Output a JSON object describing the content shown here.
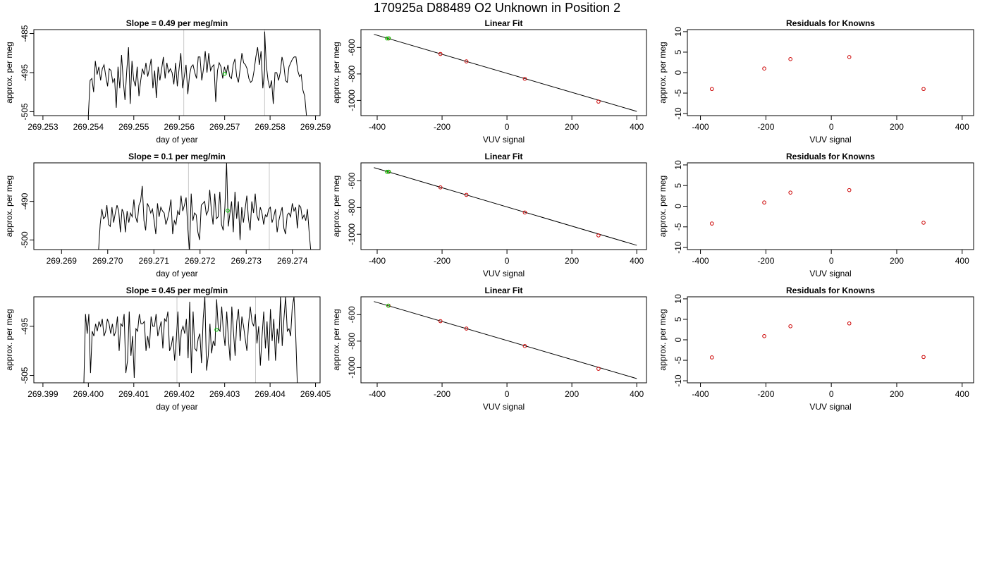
{
  "suptitle": "170925a     D88489   O2 Unknown in Position  2",
  "colors": {
    "line": "#000000",
    "known": "#cc0000",
    "unknown": "#00cc00",
    "vline": "#c8c8c8"
  },
  "rows": [
    {
      "timeseries": {
        "title": "Slope =  0.49  per meg/min",
        "xlabel": "day of year",
        "ylabel": "approx. per meg",
        "x_ticks": [
          "269.253",
          "269.254",
          "269.255",
          "269.256",
          "269.257",
          "269.258",
          "269.259"
        ],
        "y_ticks": [
          "-485",
          "-495",
          "-505"
        ]
      },
      "linear": {
        "title": "Linear Fit",
        "xlabel": "VUV signal",
        "ylabel": "approx. per meg",
        "x_ticks": [
          "-400",
          "-200",
          "0",
          "200",
          "400"
        ],
        "y_ticks": [
          "-600",
          "-800",
          "-1000"
        ]
      },
      "residuals": {
        "title": "Residuals for Knowns",
        "xlabel": "VUV signal",
        "ylabel": "approx. per meg",
        "x_ticks": [
          "-400",
          "-200",
          "0",
          "200",
          "400"
        ],
        "y_ticks": [
          "10",
          "5",
          "0",
          "-5",
          "-10"
        ]
      }
    },
    {
      "timeseries": {
        "title": "Slope =  0.1  per meg/min",
        "xlabel": "day of year",
        "ylabel": "approx. per meg",
        "x_ticks": [
          "269.269",
          "269.270",
          "269.271",
          "269.272",
          "269.273",
          "269.274"
        ],
        "y_ticks": [
          "-490",
          "-500"
        ]
      },
      "linear": {
        "title": "Linear Fit",
        "xlabel": "VUV signal",
        "ylabel": "approx. per meg",
        "x_ticks": [
          "-400",
          "-200",
          "0",
          "200",
          "400"
        ],
        "y_ticks": [
          "-600",
          "-800",
          "-1000"
        ]
      },
      "residuals": {
        "title": "Residuals for Knowns",
        "xlabel": "VUV signal",
        "ylabel": "approx. per meg",
        "x_ticks": [
          "-400",
          "-200",
          "0",
          "200",
          "400"
        ],
        "y_ticks": [
          "10",
          "5",
          "0",
          "-5",
          "-10"
        ]
      }
    },
    {
      "timeseries": {
        "title": "Slope =  0.45  per meg/min",
        "xlabel": "day of year",
        "ylabel": "approx. per meg",
        "x_ticks": [
          "269.399",
          "269.400",
          "269.401",
          "269.402",
          "269.403",
          "269.404",
          "269.405"
        ],
        "y_ticks": [
          "-495",
          "-505"
        ]
      },
      "linear": {
        "title": "Linear Fit",
        "xlabel": "VUV signal",
        "ylabel": "approx. per meg",
        "x_ticks": [
          "-400",
          "-200",
          "0",
          "200",
          "400"
        ],
        "y_ticks": [
          "-600",
          "-800",
          "-1000"
        ]
      },
      "residuals": {
        "title": "Residuals for Knowns",
        "xlabel": "VUV signal",
        "ylabel": "approx. per meg",
        "x_ticks": [
          "-400",
          "-200",
          "0",
          "200",
          "400"
        ],
        "y_ticks": [
          "10",
          "5",
          "0",
          "-5",
          "-10"
        ]
      }
    }
  ],
  "chart_data": [
    {
      "type": "line",
      "panel": "timeseries-1",
      "title": "Slope =  0.49  per meg/min",
      "xlabel": "day of year",
      "ylabel": "approx. per meg",
      "xlim": [
        269.2528,
        269.2591
      ],
      "ylim": [
        -506,
        -484
      ],
      "x_start": 269.254,
      "x_end": 269.2588,
      "y": [
        -506,
        -497,
        -496.5,
        -500,
        -492,
        -495.5,
        -493.5,
        -497,
        -494,
        -493,
        -496,
        -498.5,
        -494,
        -494.5,
        -497.5,
        -496.5,
        -504,
        -493.5,
        -499,
        -490.5,
        -497,
        -502,
        -494.5,
        -488.5,
        -503,
        -492,
        -497,
        -498.5,
        -493.5,
        -501,
        -497,
        -494,
        -495.5,
        -492.5,
        -496,
        -494,
        -491.5,
        -499,
        -494.5,
        -501.5,
        -493.5,
        -497,
        -494,
        -491,
        -496.5,
        -492.5,
        -495,
        -494,
        -495,
        -498,
        -492.5,
        -498.5,
        -494,
        -490,
        -499,
        -496,
        -493,
        -500.5,
        -495.5,
        -493.5,
        -493,
        -495,
        -496.5,
        -491,
        -491,
        -497,
        -494,
        -489.5,
        -495,
        -490,
        -494.5,
        -493.5,
        -493,
        -502.5,
        -494.5,
        -492.5,
        -493.5,
        -496.5,
        -493.5,
        -495.5,
        -493,
        -496,
        -496.5,
        -493,
        -491.5,
        -496,
        -497.5,
        -494,
        -490,
        -492.5,
        -493,
        -494,
        -496.5,
        -497.5,
        -497,
        -494.5,
        -491,
        -488.5,
        -493,
        -489.5,
        -499,
        -494.5,
        -493,
        -497,
        -499,
        -497,
        -503,
        -495,
        -495,
        -497,
        -495,
        -491,
        -493,
        -497,
        -497.5,
        -493.5,
        -492.5,
        -491.5,
        -491,
        -491,
        -494.5,
        -496,
        -495.5,
        -499.5,
        -501,
        -506
      ],
      "spike": {
        "x": 269.25788,
        "y": -484.5
      },
      "vlines": [
        269.2561,
        269.25788
      ],
      "unknown_point": {
        "x": 269.257,
        "y": -495.3
      }
    },
    {
      "type": "scatter",
      "panel": "linear-1",
      "title": "Linear Fit",
      "xlabel": "VUV signal",
      "ylabel": "approx. per meg",
      "xlim": [
        -450,
        430
      ],
      "ylim": [
        -1115,
        -465
      ],
      "fit_line": {
        "x": [
          -410,
          400
        ],
        "y": [
          -500.6,
          -1083
        ]
      },
      "knowns": [
        {
          "x": -365,
          "y": -532
        },
        {
          "x": -205,
          "y": -649
        },
        {
          "x": -125,
          "y": -705
        },
        {
          "x": 55,
          "y": -837
        },
        {
          "x": 282,
          "y": -1009
        }
      ],
      "unknowns": [
        {
          "x": -370,
          "y": -532
        },
        {
          "x": -364,
          "y": -531
        }
      ]
    },
    {
      "type": "scatter",
      "panel": "residuals-1",
      "title": "Residuals for Knowns",
      "xlabel": "VUV signal",
      "ylabel": "approx. per meg",
      "xlim": [
        -440,
        435
      ],
      "ylim": [
        -10.5,
        10.5
      ],
      "points": [
        {
          "x": -365,
          "y": -4
        },
        {
          "x": -205,
          "y": 1
        },
        {
          "x": -125,
          "y": 3.3
        },
        {
          "x": 55,
          "y": 3.8
        },
        {
          "x": 282,
          "y": -4
        }
      ]
    },
    {
      "type": "line",
      "panel": "timeseries-2",
      "title": "Slope =  0.1  per meg/min",
      "xlabel": "day of year",
      "ylabel": "approx. per meg",
      "xlim": [
        269.2684,
        269.2746
      ],
      "ylim": [
        -502.5,
        -480
      ],
      "x_start": 269.2698,
      "x_end": 269.2744,
      "y": [
        -503,
        -496,
        -492,
        -494.5,
        -494,
        -491,
        -496,
        -496.5,
        -491.5,
        -495.5,
        -493,
        -491,
        -492.5,
        -498,
        -492,
        -493,
        -498,
        -492.5,
        -495.5,
        -493,
        -494,
        -489.5,
        -494,
        -495.5,
        -491,
        -490,
        -486,
        -495,
        -497.5,
        -490.5,
        -491.5,
        -493,
        -492,
        -495,
        -498.5,
        -490.5,
        -494,
        -491.5,
        -492.5,
        -493,
        -496,
        -494.5,
        -492.5,
        -489.5,
        -498.5,
        -495,
        -496,
        -492.5,
        -493.5,
        -488.5,
        -492.5,
        -491,
        -489,
        -497,
        -503,
        -488,
        -495,
        -493,
        -493.5,
        -498,
        -500,
        -491,
        -490.5,
        -490,
        -493.5,
        -492.5,
        -487,
        -492.5,
        -496,
        -488,
        -494.5,
        -494,
        -487.5,
        -496,
        -497.5,
        -491.5,
        -480,
        -496.5,
        -493,
        -490,
        -498,
        -487.5,
        -494.5,
        -490,
        -500,
        -491.5,
        -495.5,
        -492,
        -488.5,
        -494.5,
        -497.5,
        -490,
        -493,
        -488,
        -493.5,
        -495,
        -491.5,
        -493,
        -496,
        -493.5,
        -494,
        -492,
        -491.5,
        -495.5,
        -494,
        -492,
        -498,
        -495,
        -493,
        -491.5,
        -497,
        -498.5,
        -493.5,
        -493,
        -494,
        -490.5,
        -492.5,
        -491.5,
        -497,
        -491,
        -491.5,
        -494.5,
        -493.5,
        -495,
        -492,
        -498,
        -503
      ],
      "vlines": [
        269.27175,
        269.2735
      ],
      "unknown_point": {
        "x": 269.2726,
        "y": -492.4
      }
    },
    {
      "type": "scatter",
      "panel": "linear-2",
      "title": "Linear Fit",
      "xlabel": "VUV signal",
      "ylabel": "approx. per meg",
      "xlim": [
        -450,
        430
      ],
      "ylim": [
        -1115,
        -465
      ],
      "fit_line": {
        "x": [
          -410,
          400
        ],
        "y": [
          -500.6,
          -1083
        ]
      },
      "knowns": [
        {
          "x": -365,
          "y": -532
        },
        {
          "x": -205,
          "y": -649
        },
        {
          "x": -125,
          "y": -705
        },
        {
          "x": 55,
          "y": -837
        },
        {
          "x": 282,
          "y": -1009
        }
      ],
      "unknowns": [
        {
          "x": -370,
          "y": -532
        },
        {
          "x": -364,
          "y": -531
        }
      ]
    },
    {
      "type": "scatter",
      "panel": "residuals-2",
      "title": "Residuals for Knowns",
      "xlabel": "VUV signal",
      "ylabel": "approx. per meg",
      "xlim": [
        -440,
        435
      ],
      "ylim": [
        -10.5,
        10.5
      ],
      "points": [
        {
          "x": -365,
          "y": -4.2
        },
        {
          "x": -205,
          "y": 0.9
        },
        {
          "x": -125,
          "y": 3.3
        },
        {
          "x": 55,
          "y": 3.9
        },
        {
          "x": 282,
          "y": -4
        }
      ]
    },
    {
      "type": "line",
      "panel": "timeseries-3",
      "title": "Slope =  0.45  per meg/min",
      "xlabel": "day of year",
      "ylabel": "approx. per meg",
      "xlim": [
        269.3988,
        269.4051
      ],
      "ylim": [
        -506.5,
        -489
      ],
      "x_start": 269.3999,
      "x_end": 269.4046,
      "y": [
        -507,
        -492.5,
        -496.5,
        -492.5,
        -504.5,
        -496,
        -497,
        -494.5,
        -496,
        -494,
        -495,
        -493.5,
        -497,
        -496,
        -493.5,
        -494.5,
        -496.5,
        -494.5,
        -497,
        -496,
        -493,
        -500,
        -494.5,
        -495,
        -492.5,
        -504.5,
        -502,
        -492,
        -501,
        -497,
        -505.5,
        -495.5,
        -496,
        -492.5,
        -494.5,
        -494.5,
        -494,
        -500,
        -497,
        -499.5,
        -493,
        -495,
        -495,
        -492.5,
        -497,
        -495.5,
        -494,
        -499.5,
        -493.5,
        -494,
        -492,
        -500,
        -499,
        -497,
        -502,
        -497.5,
        -492,
        -501,
        -496,
        -495,
        -496.5,
        -493.5,
        -501.5,
        -490,
        -504.5,
        -492,
        -499.5,
        -500,
        -497.5,
        -496.5,
        -502.5,
        -493.5,
        -489,
        -504,
        -501,
        -494.5,
        -500.5,
        -498,
        -499,
        -489.5,
        -495.5,
        -496,
        -491,
        -496,
        -499,
        -492,
        -497.5,
        -502,
        -491,
        -496,
        -501,
        -494,
        -491.5,
        -498,
        -493,
        -495,
        -497.5,
        -500,
        -494.5,
        -491,
        -494,
        -495,
        -492.5,
        -498.5,
        -495,
        -503,
        -497,
        -492,
        -499.5,
        -494,
        -502,
        -491.5,
        -498,
        -493.5,
        -502,
        -495.5,
        -498.5,
        -489,
        -499,
        -493.5,
        -489,
        -496,
        -495.5,
        -497,
        -491,
        -489,
        -496.5,
        -507
      ],
      "vlines": [
        269.40195,
        269.40368
      ],
      "unknown_point": {
        "x": 269.40282,
        "y": -495.7
      }
    },
    {
      "type": "scatter",
      "panel": "linear-3",
      "title": "Linear Fit",
      "xlabel": "VUV signal",
      "ylabel": "approx. per meg",
      "xlim": [
        -450,
        430
      ],
      "ylim": [
        -1115,
        -465
      ],
      "fit_line": {
        "x": [
          -410,
          400
        ],
        "y": [
          -500.6,
          -1083
        ]
      },
      "knowns": [
        {
          "x": -365,
          "y": -532
        },
        {
          "x": -205,
          "y": -649
        },
        {
          "x": -125,
          "y": -705
        },
        {
          "x": 55,
          "y": -837
        },
        {
          "x": 282,
          "y": -1009
        }
      ],
      "unknowns": [
        {
          "x": -366,
          "y": -532
        }
      ]
    },
    {
      "type": "scatter",
      "panel": "residuals-3",
      "title": "Residuals for Knowns",
      "xlabel": "VUV signal",
      "ylabel": "approx. per meg",
      "xlim": [
        -440,
        435
      ],
      "ylim": [
        -10.5,
        10.5
      ],
      "points": [
        {
          "x": -365,
          "y": -4.3
        },
        {
          "x": -205,
          "y": 0.9
        },
        {
          "x": -125,
          "y": 3.3
        },
        {
          "x": 55,
          "y": 4
        },
        {
          "x": 282,
          "y": -4.2
        }
      ]
    }
  ]
}
